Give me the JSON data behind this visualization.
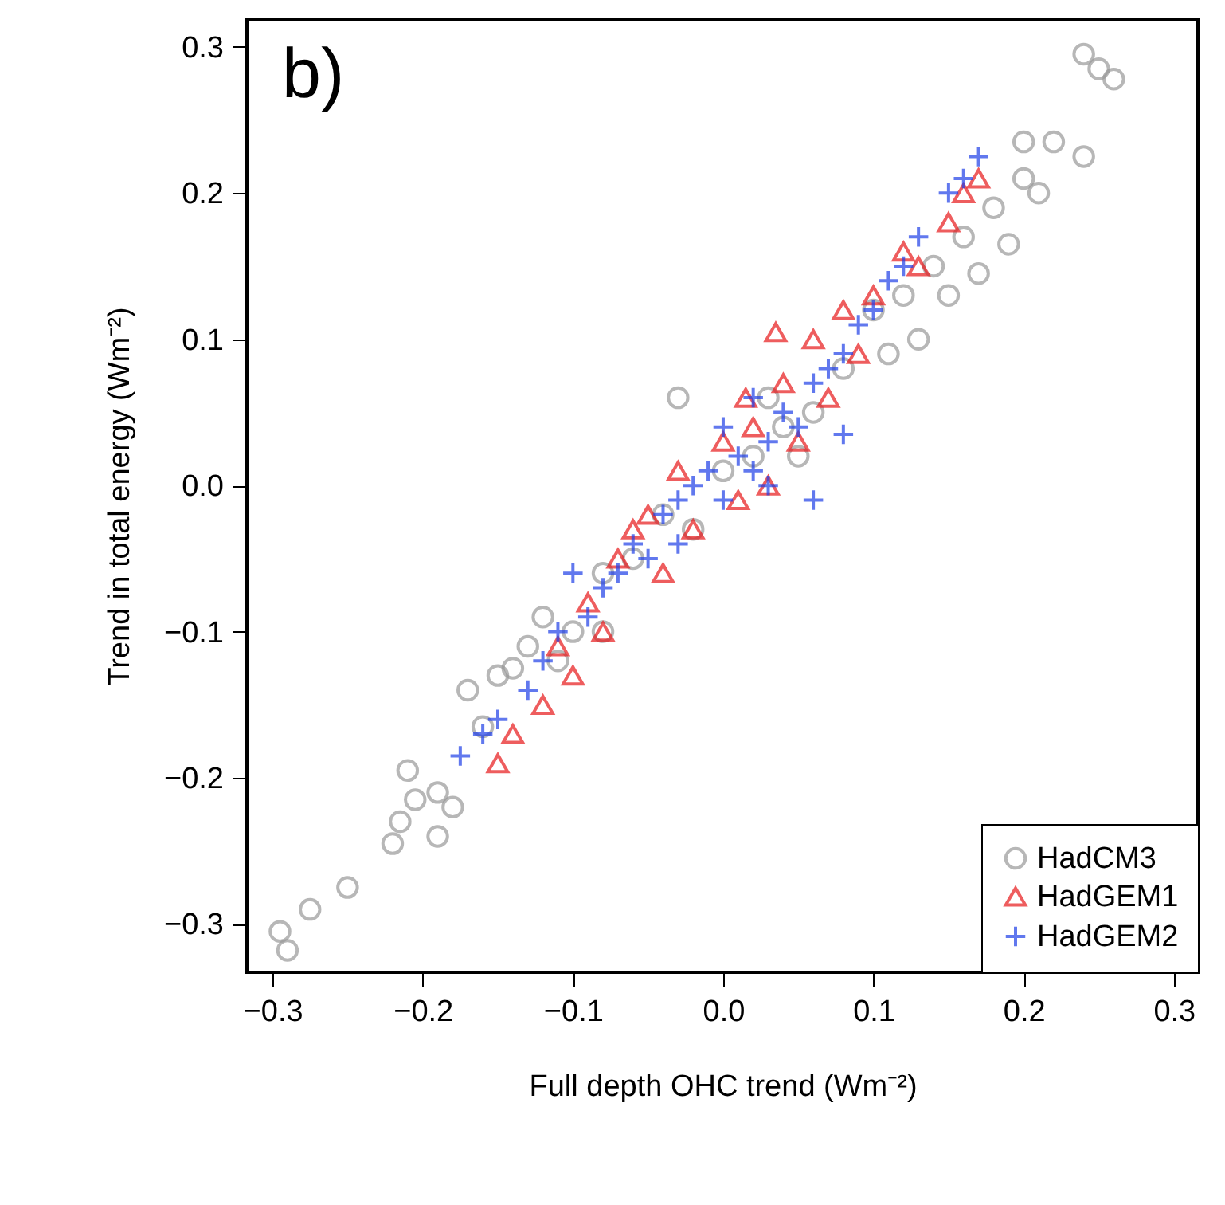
{
  "chart_data": {
    "type": "scatter",
    "xlabel": "Full depth OHC trend (Wm⁻²)",
    "ylabel": "Trend in total energy (Wm⁻²)",
    "annotations": [
      "b)"
    ],
    "xlim": [
      -0.317,
      0.316
    ],
    "ylim": [
      -0.333,
      0.319
    ],
    "xticks": [
      -0.3,
      -0.2,
      -0.1,
      {
        "value": 0,
        "label": "0.0"
      },
      0.1,
      0.2,
      0.3
    ],
    "yticks": [
      -0.3,
      -0.2,
      -0.1,
      {
        "value": 0,
        "label": "0.0"
      },
      0.1,
      0.2,
      0.3
    ],
    "grid": false,
    "legend": "bottom right",
    "series": [
      {
        "name": "HadCM3",
        "color": "#999999",
        "marker": "circle",
        "x": [
          -0.295,
          -0.29,
          -0.275,
          -0.25,
          -0.22,
          -0.215,
          -0.21,
          -0.205,
          -0.19,
          -0.19,
          -0.18,
          -0.17,
          -0.16,
          -0.14,
          -0.13,
          -0.12,
          -0.1,
          -0.08,
          -0.06,
          -0.04,
          -0.02,
          0,
          -0.03,
          0.02,
          0.04,
          0.06,
          0.08,
          0.1,
          0.12,
          0.13,
          0.14,
          0.16,
          0.18,
          0.19,
          0.2,
          0.21,
          0.22,
          0.2,
          0.24,
          0.24,
          0.25,
          0.26,
          0.15,
          0.17,
          0.11,
          -0.15,
          -0.11,
          -0.08,
          0.05,
          0.03
        ],
        "values": [
          -0.305,
          -0.318,
          -0.29,
          -0.275,
          -0.245,
          -0.23,
          -0.195,
          -0.215,
          -0.21,
          -0.24,
          -0.22,
          -0.14,
          -0.165,
          -0.125,
          -0.11,
          -0.09,
          -0.1,
          -0.06,
          -0.05,
          -0.02,
          -0.03,
          0.01,
          0.06,
          0.02,
          0.04,
          0.05,
          0.08,
          0.12,
          0.13,
          0.1,
          0.15,
          0.17,
          0.19,
          0.165,
          0.21,
          0.2,
          0.235,
          0.235,
          0.225,
          0.295,
          0.285,
          0.278,
          0.13,
          0.145,
          0.09,
          -0.13,
          -0.12,
          -0.1,
          0.02,
          0.06
        ]
      },
      {
        "name": "HadGEM1",
        "color": "#e8191b",
        "marker": "triangle",
        "x": [
          -0.15,
          -0.14,
          -0.12,
          -0.1,
          -0.09,
          -0.08,
          -0.07,
          -0.06,
          -0.05,
          -0.04,
          -0.03,
          -0.02,
          0,
          0.01,
          0.02,
          0.03,
          0.04,
          0.05,
          0.06,
          0.07,
          0.08,
          0.09,
          0.1,
          0.12,
          0.13,
          0.15,
          0.16,
          0.17,
          -0.11,
          0.035,
          0.015
        ],
        "values": [
          -0.19,
          -0.17,
          -0.15,
          -0.13,
          -0.08,
          -0.1,
          -0.05,
          -0.03,
          -0.02,
          -0.06,
          0.01,
          -0.03,
          0.03,
          -0.01,
          0.04,
          0,
          0.07,
          0.03,
          0.1,
          0.06,
          0.12,
          0.09,
          0.13,
          0.16,
          0.15,
          0.18,
          0.2,
          0.21,
          -0.11,
          0.105,
          0.06
        ]
      },
      {
        "name": "HadGEM2",
        "color": "#1f3fe8",
        "marker": "cross",
        "x": [
          -0.175,
          -0.16,
          -0.15,
          -0.13,
          -0.12,
          -0.11,
          -0.09,
          -0.08,
          -0.07,
          -0.06,
          -0.05,
          -0.04,
          -0.03,
          -0.02,
          -0.01,
          0,
          0.01,
          0.02,
          0.03,
          0.04,
          0.05,
          0.06,
          0.07,
          0.08,
          0.09,
          0.1,
          0.11,
          0.12,
          0.13,
          0.15,
          0.16,
          0.17,
          0.03,
          0.06,
          0.08,
          -0.1,
          0,
          -0.03,
          0.02
        ],
        "values": [
          -0.185,
          -0.17,
          -0.16,
          -0.14,
          -0.12,
          -0.1,
          -0.09,
          -0.07,
          -0.06,
          -0.04,
          -0.05,
          -0.02,
          -0.01,
          0,
          0.01,
          -0.01,
          0.02,
          0.01,
          0.03,
          0.05,
          0.04,
          0.07,
          0.08,
          0.09,
          0.11,
          0.12,
          0.14,
          0.15,
          0.17,
          0.2,
          0.21,
          0.225,
          0,
          -0.01,
          0.035,
          -0.06,
          0.04,
          -0.04,
          0.06
        ]
      }
    ]
  }
}
